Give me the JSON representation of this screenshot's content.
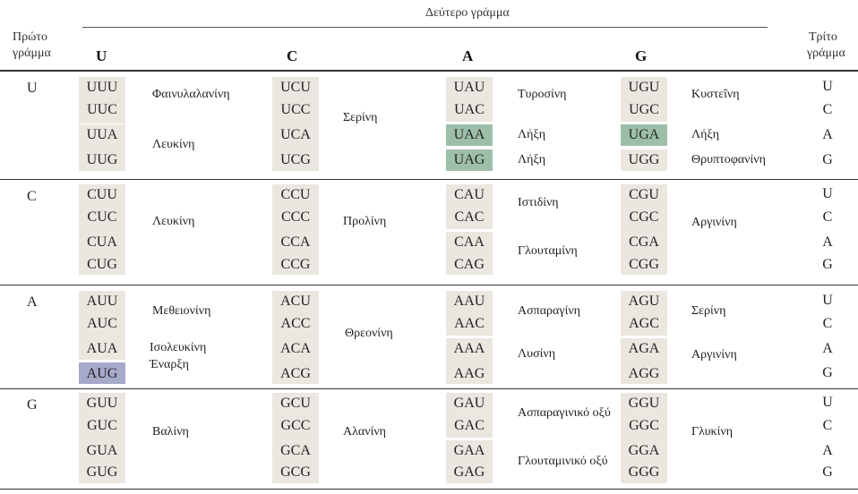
{
  "header": {
    "second_letter": "Δεύτερο γράμμα",
    "first_letter_line1": "Πρώτο",
    "first_letter_line2": "γράμμα",
    "third_letter_line1": "Τρίτο",
    "third_letter_line2": "γράμμα",
    "columns": [
      "U",
      "C",
      "A",
      "G"
    ]
  },
  "first_letters": [
    "U",
    "C",
    "A",
    "G"
  ],
  "third_letters": [
    "U",
    "C",
    "A",
    "G"
  ],
  "rows": [
    {
      "U": {
        "codons": [
          "UUU",
          "UUC",
          "UUA",
          "UUG"
        ],
        "aa": [
          "Φαινυλαλανίνη",
          "Λευκίνη"
        ]
      },
      "C": {
        "codons": [
          "UCU",
          "UCC",
          "UCA",
          "UCG"
        ],
        "aa": [
          "Σερίνη"
        ]
      },
      "A": {
        "codons": [
          "UAU",
          "UAC",
          "UAA",
          "UAG"
        ],
        "aa": [
          "Τυροσίνη",
          "Λήξη",
          "Λήξη"
        ]
      },
      "G": {
        "codons": [
          "UGU",
          "UGC",
          "UGA",
          "UGG"
        ],
        "aa": [
          "Κυστεΐνη",
          "Λήξη",
          "Θρυπτοφανίνη"
        ]
      }
    },
    {
      "U": {
        "codons": [
          "CUU",
          "CUC",
          "CUA",
          "CUG"
        ],
        "aa": [
          "Λευκίνη"
        ]
      },
      "C": {
        "codons": [
          "CCU",
          "CCC",
          "CCA",
          "CCG"
        ],
        "aa": [
          "Προλίνη"
        ]
      },
      "A": {
        "codons": [
          "CAU",
          "CAC",
          "CAA",
          "CAG"
        ],
        "aa": [
          "Ιστιδίνη",
          "Γλουταμίνη"
        ]
      },
      "G": {
        "codons": [
          "CGU",
          "CGC",
          "CGA",
          "CGG"
        ],
        "aa": [
          "Αργινίνη"
        ]
      }
    },
    {
      "U": {
        "codons": [
          "AUU",
          "AUC",
          "AUA",
          "AUG"
        ],
        "aa": [
          "Μεθειονίνη",
          "Ισολευκίνη",
          "Έναρξη"
        ]
      },
      "C": {
        "codons": [
          "ACU",
          "ACC",
          "ACA",
          "ACG"
        ],
        "aa": [
          "Θρεονίνη"
        ]
      },
      "A": {
        "codons": [
          "AAU",
          "AAC",
          "AAA",
          "AAG"
        ],
        "aa": [
          "Ασπαραγίνη",
          "Λυσίνη"
        ]
      },
      "G": {
        "codons": [
          "AGU",
          "AGC",
          "AGA",
          "AGG"
        ],
        "aa": [
          "Σερίνη",
          "Αργινίνη"
        ]
      }
    },
    {
      "U": {
        "codons": [
          "GUU",
          "GUC",
          "GUA",
          "GUG"
        ],
        "aa": [
          "Βαλίνη"
        ]
      },
      "C": {
        "codons": [
          "GCU",
          "GCC",
          "GCA",
          "GCG"
        ],
        "aa": [
          "Αλανίνη"
        ]
      },
      "A": {
        "codons": [
          "GAU",
          "GAC",
          "GAA",
          "GAG"
        ],
        "aa": [
          "Ασπαραγινικό οξύ",
          "Γλουταμινικό οξύ"
        ]
      },
      "G": {
        "codons": [
          "GGU",
          "GGC",
          "GGA",
          "GGG"
        ],
        "aa": [
          "Γλυκίνη"
        ]
      }
    }
  ],
  "colors": {
    "codon_bg": "#ebe6df",
    "stop_bg": "#9dbfaa",
    "start_bg": "#a6a9c9"
  }
}
